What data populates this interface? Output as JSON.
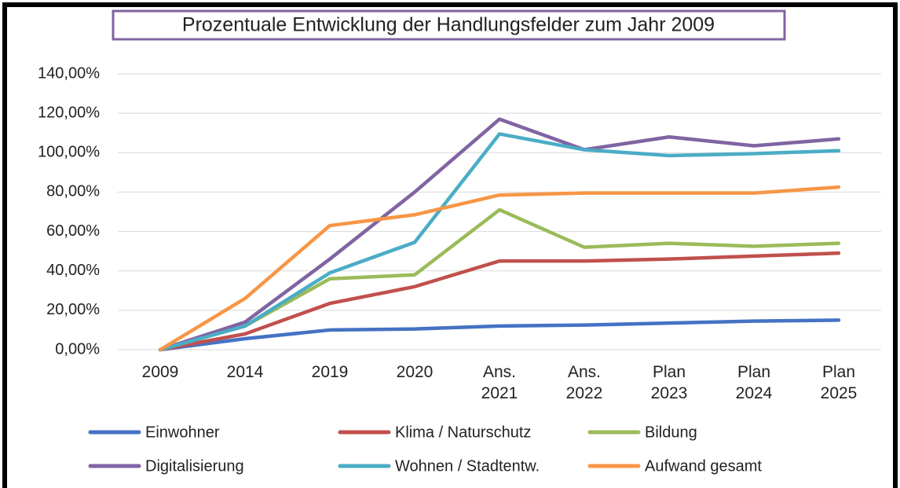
{
  "chart_data": {
    "type": "line",
    "title": "Prozentuale Entwicklung der Handlungsfelder zum Jahr 2009",
    "categories": [
      "2009",
      "2014",
      "2019",
      "2020",
      "Ans. 2021",
      "Ans. 2022",
      "Plan 2023",
      "Plan 2024",
      "Plan 2025"
    ],
    "series": [
      {
        "name": "Einwohner",
        "color": "#4472c4",
        "values": [
          0,
          5.6,
          10,
          10.5,
          12,
          12.5,
          13.5,
          14.5,
          15
        ]
      },
      {
        "name": "Klima / Naturschutz",
        "color": "#c0504d",
        "values": [
          0,
          8,
          23.5,
          32,
          45,
          45,
          46,
          47.5,
          49
        ]
      },
      {
        "name": "Bildung",
        "color": "#9bbb59",
        "values": [
          0,
          12,
          36,
          38,
          71,
          52,
          54,
          52.5,
          54
        ]
      },
      {
        "name": "Digitalisierung",
        "color": "#8064a2",
        "values": [
          0,
          14,
          46,
          80,
          117,
          101.5,
          108,
          103.5,
          107
        ]
      },
      {
        "name": "Wohnen / Stadtentw.",
        "color": "#4bacc6",
        "values": [
          0,
          12,
          39,
          54.5,
          109.5,
          101.5,
          98.5,
          99.5,
          101
        ]
      },
      {
        "name": "Aufwand gesamt",
        "color": "#f79646",
        "values": [
          0,
          26,
          63,
          68.5,
          78.5,
          79.5,
          79.5,
          79.5,
          82.5
        ]
      }
    ],
    "ylim": [
      0,
      140
    ],
    "yticks": [
      {
        "value": 0,
        "label": "0,00%"
      },
      {
        "value": 20,
        "label": "20,00%"
      },
      {
        "value": 40,
        "label": "40,00%"
      },
      {
        "value": 60,
        "label": "60,00%"
      },
      {
        "value": 80,
        "label": "80,00%"
      },
      {
        "value": 100,
        "label": "100,00%"
      },
      {
        "value": 120,
        "label": "120,00%"
      },
      {
        "value": 140,
        "label": "140,00%"
      }
    ],
    "grid": true,
    "legend": "bottom"
  }
}
